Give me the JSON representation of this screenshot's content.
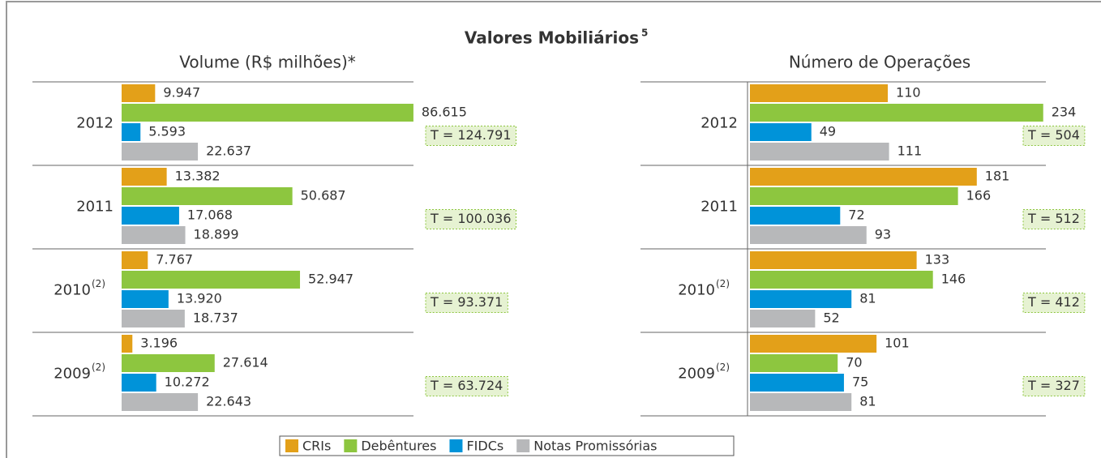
{
  "title": "Valores Mobiliários",
  "title_note": "5",
  "legend": [
    {
      "name": "CRIs",
      "color": "#e3a019"
    },
    {
      "name": "Debêntures",
      "color": "#8dc63f"
    },
    {
      "name": "FIDCs",
      "color": "#0093d9"
    },
    {
      "name": "Notas Promissórias",
      "color": "#b7b8ba"
    }
  ],
  "chart_data": [
    {
      "type": "bar",
      "orientation": "horizontal",
      "subtitle": "Volume (R$ milhões)*",
      "categories": [
        "2012",
        "2011",
        "2010",
        "2009"
      ],
      "category_notes": [
        null,
        null,
        "(2)",
        "(2)"
      ],
      "xlim": [
        0,
        90000
      ],
      "series": [
        {
          "values": [
            9947,
            13382,
            7767,
            3196
          ],
          "value_labels": [
            "9.947",
            "13.382",
            "7.767",
            "3.196"
          ]
        },
        {
          "values": [
            86615,
            50687,
            52947,
            27614
          ],
          "value_labels": [
            "86.615",
            "50.687",
            "52.947",
            "27.614"
          ]
        },
        {
          "values": [
            5593,
            17068,
            13920,
            10272
          ],
          "value_labels": [
            "5.593",
            "17.068",
            "13.920",
            "10.272"
          ]
        },
        {
          "values": [
            22637,
            18899,
            18737,
            22643
          ],
          "value_labels": [
            "22.637",
            "18.899",
            "18.737",
            "22.643"
          ]
        }
      ],
      "totals": [
        124791,
        100036,
        93371,
        63724
      ],
      "total_labels": [
        "T = 124.791",
        "T = 100.036",
        "T = 93.371",
        "T = 63.724"
      ]
    },
    {
      "type": "bar",
      "orientation": "horizontal",
      "subtitle": "Número de Operações",
      "categories": [
        "2012",
        "2011",
        "2010",
        "2009"
      ],
      "category_notes": [
        null,
        null,
        "(2)",
        "(2)"
      ],
      "xlim": [
        0,
        240
      ],
      "series": [
        {
          "values": [
            110,
            181,
            133,
            101
          ]
        },
        {
          "values": [
            234,
            166,
            146,
            70
          ]
        },
        {
          "values": [
            49,
            72,
            81,
            75
          ]
        },
        {
          "values": [
            111,
            93,
            52,
            81
          ]
        }
      ],
      "totals": [
        504,
        512,
        412,
        327
      ],
      "total_labels": [
        "T = 504",
        "T = 512",
        "T = 412",
        "T = 327"
      ]
    }
  ]
}
